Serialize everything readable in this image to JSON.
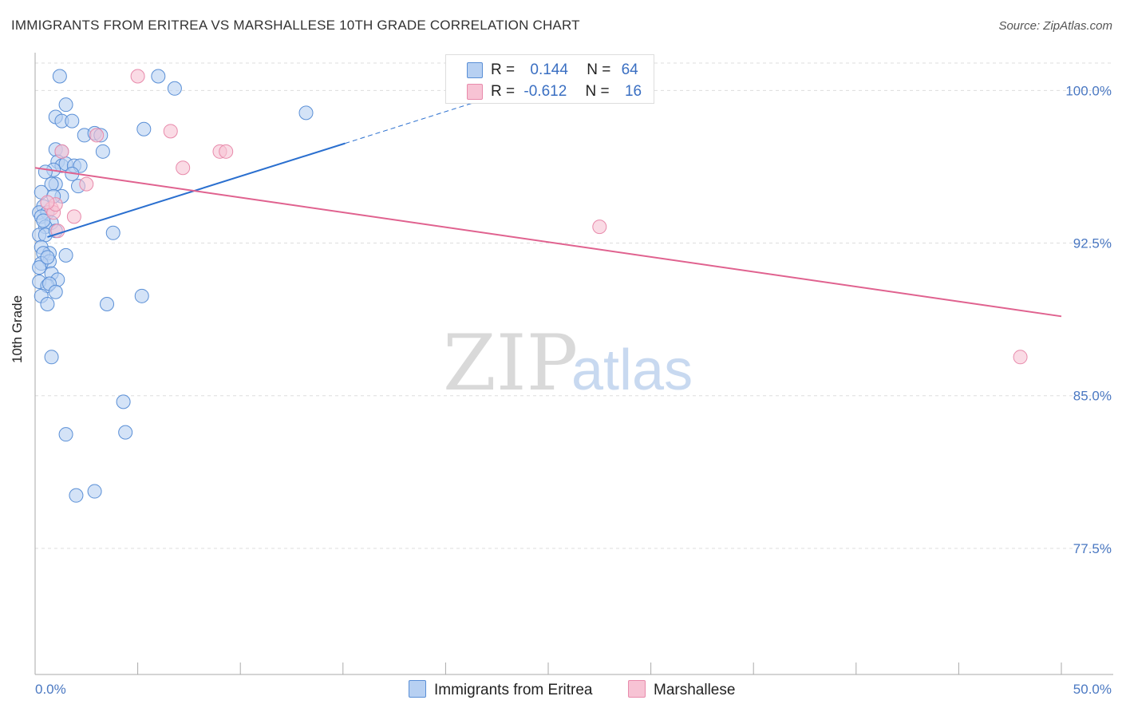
{
  "title": "IMMIGRANTS FROM ERITREA VS MARSHALLESE 10TH GRADE CORRELATION CHART",
  "source": "Source: ZipAtlas.com",
  "watermark": {
    "zip": "ZIP",
    "atlas": "atlas"
  },
  "legend": {
    "r_label": "R =",
    "n_label": "N =",
    "rows": [
      {
        "r": "0.144",
        "n": "64"
      },
      {
        "r": "-0.612",
        "n": "16"
      }
    ]
  },
  "colors": {
    "blue_fill": "#b7d0f2",
    "blue_stroke": "#5a8fd6",
    "blue_line": "#2a6fcf",
    "pink_fill": "#f7c3d4",
    "pink_stroke": "#e88aab",
    "pink_line": "#e0628f",
    "grid": "#dddddd",
    "tick_label": "#4a78c2"
  },
  "chart_data": {
    "type": "scatter",
    "title": "IMMIGRANTS FROM ERITREA VS MARSHALLESE 10TH GRADE CORRELATION CHART",
    "xlabel": "",
    "ylabel": "10th Grade",
    "xlim": [
      0,
      50
    ],
    "ylim": [
      71.3,
      101.7
    ],
    "x_tick_labels": [
      "0.0%",
      "50.0%"
    ],
    "y_ticks": [
      77.5,
      85.0,
      92.5,
      100.0
    ],
    "y_tick_labels": [
      "77.5%",
      "85.0%",
      "92.5%",
      "100.0%"
    ],
    "grid": "horizontal dashed",
    "legend_position": "top-center and bottom",
    "series": [
      {
        "name": "Immigrants from Eritrea",
        "color": "#5a8fd6",
        "r": 0.144,
        "n": 64,
        "trend": {
          "x0": 0.6,
          "y0": 92.8,
          "x1": 15.1,
          "y1": 97.4,
          "dashed_to_x": 22.0,
          "dashed_to_y": 99.6
        },
        "points": [
          [
            1.2,
            100.7
          ],
          [
            6.0,
            100.7
          ],
          [
            6.8,
            100.1
          ],
          [
            1.5,
            99.3
          ],
          [
            1.0,
            98.7
          ],
          [
            1.3,
            98.5
          ],
          [
            1.8,
            98.5
          ],
          [
            5.3,
            98.1
          ],
          [
            2.4,
            97.8
          ],
          [
            2.9,
            97.9
          ],
          [
            3.2,
            97.8
          ],
          [
            13.2,
            98.9
          ],
          [
            3.3,
            97.0
          ],
          [
            1.0,
            97.1
          ],
          [
            1.3,
            97.0
          ],
          [
            1.1,
            96.5
          ],
          [
            1.3,
            96.3
          ],
          [
            1.5,
            96.4
          ],
          [
            1.9,
            96.3
          ],
          [
            2.2,
            96.3
          ],
          [
            0.9,
            96.1
          ],
          [
            0.5,
            96.0
          ],
          [
            1.8,
            95.9
          ],
          [
            1.0,
            95.4
          ],
          [
            0.8,
            95.4
          ],
          [
            2.1,
            95.3
          ],
          [
            0.3,
            95.0
          ],
          [
            1.3,
            94.8
          ],
          [
            0.4,
            94.3
          ],
          [
            0.2,
            94.0
          ],
          [
            0.6,
            94.0
          ],
          [
            0.3,
            93.8
          ],
          [
            0.8,
            93.5
          ],
          [
            0.5,
            93.3
          ],
          [
            3.8,
            93.0
          ],
          [
            0.2,
            92.9
          ],
          [
            0.5,
            92.9
          ],
          [
            0.3,
            92.3
          ],
          [
            0.7,
            92.0
          ],
          [
            0.4,
            92.0
          ],
          [
            1.5,
            91.9
          ],
          [
            0.7,
            91.6
          ],
          [
            0.3,
            91.5
          ],
          [
            0.2,
            91.3
          ],
          [
            0.8,
            91.0
          ],
          [
            1.1,
            90.7
          ],
          [
            0.2,
            90.6
          ],
          [
            0.6,
            90.4
          ],
          [
            0.7,
            90.5
          ],
          [
            1.0,
            90.1
          ],
          [
            0.3,
            89.9
          ],
          [
            5.2,
            89.9
          ],
          [
            3.5,
            89.5
          ],
          [
            0.6,
            89.5
          ],
          [
            0.8,
            86.9
          ],
          [
            4.3,
            84.7
          ],
          [
            1.5,
            83.1
          ],
          [
            4.4,
            83.2
          ],
          [
            2.0,
            80.1
          ],
          [
            2.9,
            80.3
          ],
          [
            1.0,
            93.1
          ],
          [
            0.4,
            93.6
          ],
          [
            0.9,
            94.8
          ],
          [
            0.6,
            91.8
          ]
        ]
      },
      {
        "name": "Marshallese",
        "color": "#e88aab",
        "r": -0.612,
        "n": 16,
        "trend": {
          "x0": 0.0,
          "y0": 96.2,
          "x1": 50.0,
          "y1": 88.9
        },
        "points": [
          [
            5.0,
            100.7
          ],
          [
            6.6,
            98.0
          ],
          [
            3.0,
            97.8
          ],
          [
            9.0,
            97.0
          ],
          [
            9.3,
            97.0
          ],
          [
            1.3,
            97.0
          ],
          [
            7.2,
            96.2
          ],
          [
            2.5,
            95.4
          ],
          [
            0.8,
            94.2
          ],
          [
            0.9,
            94.0
          ],
          [
            1.0,
            94.4
          ],
          [
            1.9,
            93.8
          ],
          [
            1.1,
            93.1
          ],
          [
            27.5,
            93.3
          ],
          [
            48.0,
            86.9
          ],
          [
            0.6,
            94.5
          ]
        ]
      }
    ]
  },
  "bottom_legend": [
    {
      "label": "Immigrants from Eritrea"
    },
    {
      "label": "Marshallese"
    }
  ]
}
